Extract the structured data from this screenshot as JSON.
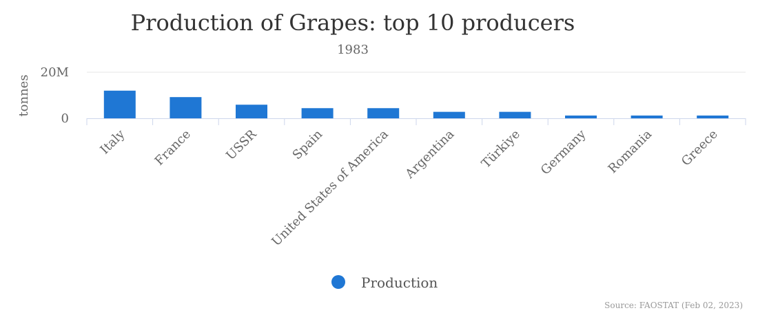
{
  "chart_data": {
    "type": "bar",
    "title": "Production of Grapes: top 10 producers",
    "subtitle": "1983",
    "xlabel": "",
    "ylabel": "tonnes",
    "ylim": [
      0,
      20000000
    ],
    "yticks": [
      {
        "value": 0,
        "label": "0"
      },
      {
        "value": 20000000,
        "label": "20M"
      }
    ],
    "categories": [
      "Italy",
      "France",
      "USSR",
      "Spain",
      "United States of America",
      "Argentina",
      "Türkiye",
      "Germany",
      "Romania",
      "Greece"
    ],
    "series": [
      {
        "name": "Production",
        "color": "#1f77d4",
        "values": [
          12000000,
          9200000,
          5900000,
          4400000,
          4400000,
          2800000,
          2800000,
          1200000,
          1200000,
          1200000
        ]
      }
    ],
    "grid": true,
    "legend_position": "bottom-center"
  },
  "source": "Source: FAOSTAT (Feb 02, 2023)"
}
